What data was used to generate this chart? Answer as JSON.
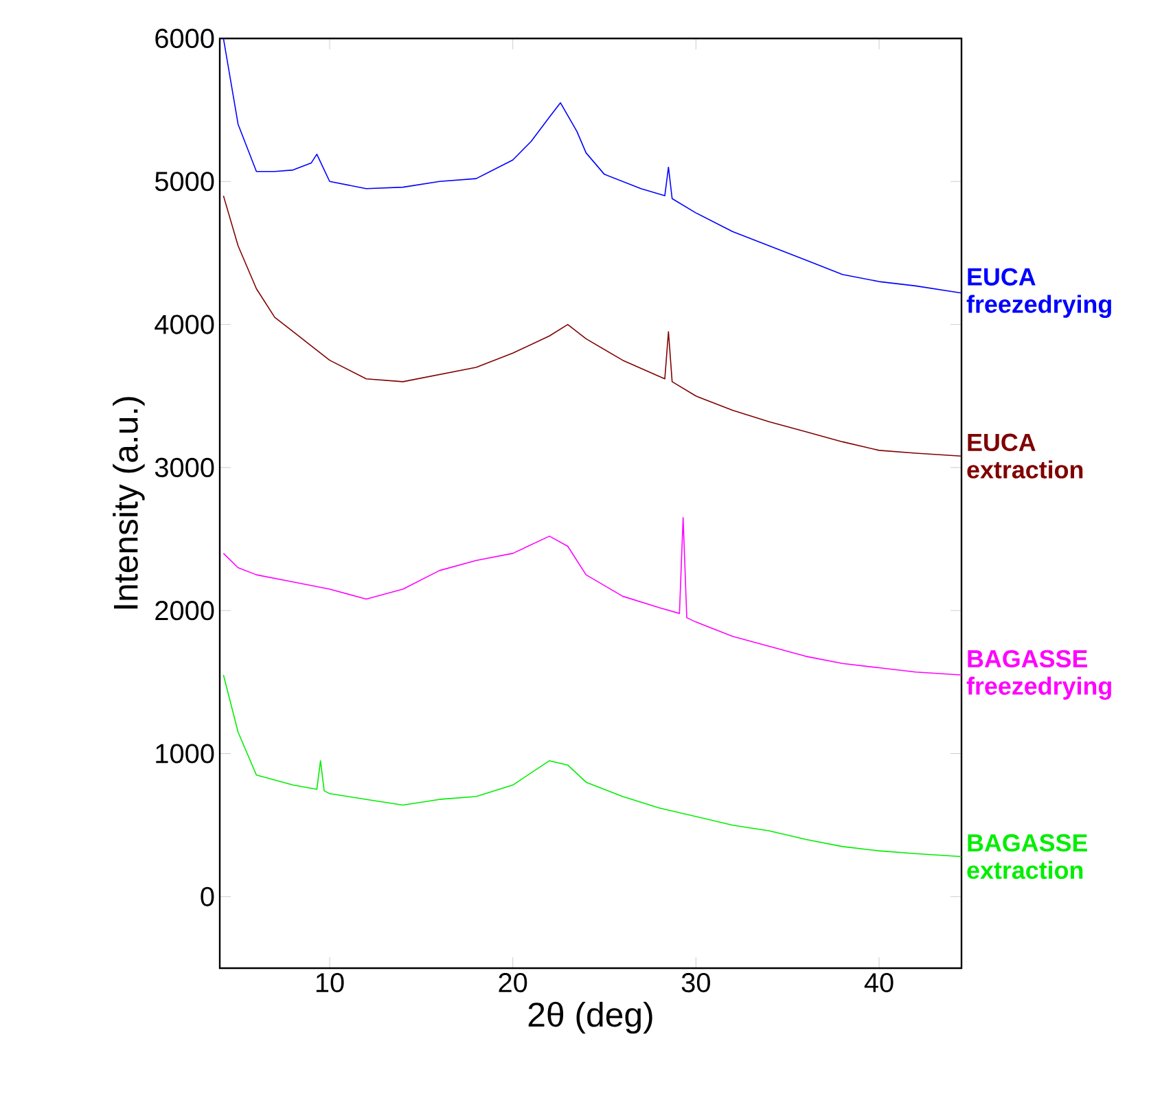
{
  "chart_data": {
    "type": "line",
    "xlabel": "2θ (deg)",
    "ylabel": "Intensity (a.u.)",
    "xlim": [
      4,
      44.5
    ],
    "ylim": [
      -500,
      6000
    ],
    "xticks": [
      10,
      20,
      30,
      40
    ],
    "yticks": [
      0,
      1000,
      2000,
      3000,
      4000,
      5000,
      6000
    ],
    "series": [
      {
        "name": "EUCA freezedrying",
        "color": "#0000ff",
        "x": [
          4.2,
          5,
          6,
          7,
          8,
          9,
          9.3,
          10,
          12,
          14,
          16,
          18,
          20,
          21,
          22,
          22.6,
          23.5,
          24,
          25,
          27,
          28.3,
          28.5,
          28.7,
          30,
          32,
          34,
          36,
          38,
          40,
          42,
          44.5
        ],
        "values": [
          6000,
          5400,
          5070,
          5070,
          5080,
          5130,
          5190,
          5000,
          4950,
          4960,
          5000,
          5020,
          5150,
          5280,
          5450,
          5550,
          5350,
          5200,
          5050,
          4950,
          4900,
          5100,
          4880,
          4780,
          4650,
          4550,
          4450,
          4350,
          4300,
          4270,
          4220
        ]
      },
      {
        "name": "EUCA extraction",
        "color": "#800000",
        "x": [
          4.2,
          5,
          6,
          7,
          8,
          10,
          12,
          14,
          16,
          18,
          20,
          22,
          23,
          24,
          26,
          28.3,
          28.5,
          28.7,
          30,
          32,
          34,
          36,
          38,
          40,
          42,
          44.5
        ],
        "values": [
          4900,
          4550,
          4250,
          4050,
          3950,
          3750,
          3620,
          3600,
          3650,
          3700,
          3800,
          3920,
          4000,
          3900,
          3750,
          3620,
          3950,
          3600,
          3500,
          3400,
          3320,
          3250,
          3180,
          3120,
          3100,
          3080
        ]
      },
      {
        "name": "BAGASSE freezedrying",
        "color": "#ff00ff",
        "x": [
          4.2,
          5,
          6,
          8,
          10,
          12,
          14,
          16,
          18,
          20,
          22,
          23,
          24,
          26,
          28,
          29.1,
          29.3,
          29.5,
          30,
          32,
          34,
          36,
          38,
          40,
          42,
          44.5
        ],
        "values": [
          2400,
          2300,
          2250,
          2200,
          2150,
          2080,
          2150,
          2280,
          2350,
          2400,
          2520,
          2450,
          2250,
          2100,
          2020,
          1980,
          2650,
          1950,
          1920,
          1820,
          1750,
          1680,
          1630,
          1600,
          1570,
          1550
        ]
      },
      {
        "name": "BAGASSE extraction",
        "color": "#00ee00",
        "x": [
          4.2,
          5,
          6,
          8,
          9.3,
          9.5,
          9.7,
          10,
          12,
          14,
          16,
          18,
          20,
          22,
          23,
          24,
          26,
          28,
          30,
          32,
          34,
          36,
          38,
          40,
          42,
          44.5
        ],
        "values": [
          1550,
          1150,
          850,
          780,
          750,
          950,
          740,
          720,
          680,
          640,
          680,
          700,
          780,
          950,
          920,
          800,
          700,
          620,
          560,
          500,
          460,
          400,
          350,
          320,
          300,
          280
        ]
      }
    ]
  }
}
